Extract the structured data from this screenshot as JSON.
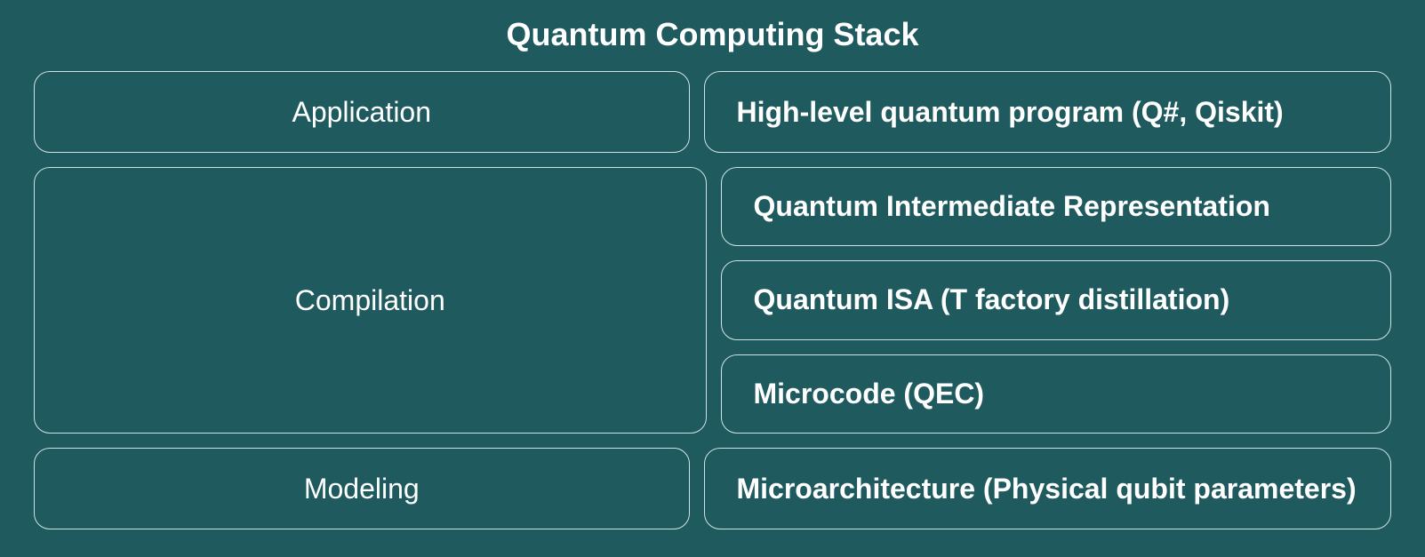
{
  "title": "Quantum Computing Stack",
  "background_color": "#1f5a5e",
  "border_color": "#d0e3e4",
  "text_color": "#ffffff",
  "title_fontsize": 36,
  "label_fontsize": 32,
  "border_radius": 18,
  "gap": 16,
  "rows": [
    {
      "left": "Application",
      "right": [
        "High-level quantum program (Q#, Qiskit)"
      ]
    },
    {
      "left": "Compilation",
      "right": [
        "Quantum Intermediate Representation",
        "Quantum ISA (T factory distillation)",
        "Microcode (QEC)"
      ]
    },
    {
      "left": "Modeling",
      "right": [
        "Microarchitecture (Physical qubit parameters)"
      ]
    }
  ]
}
